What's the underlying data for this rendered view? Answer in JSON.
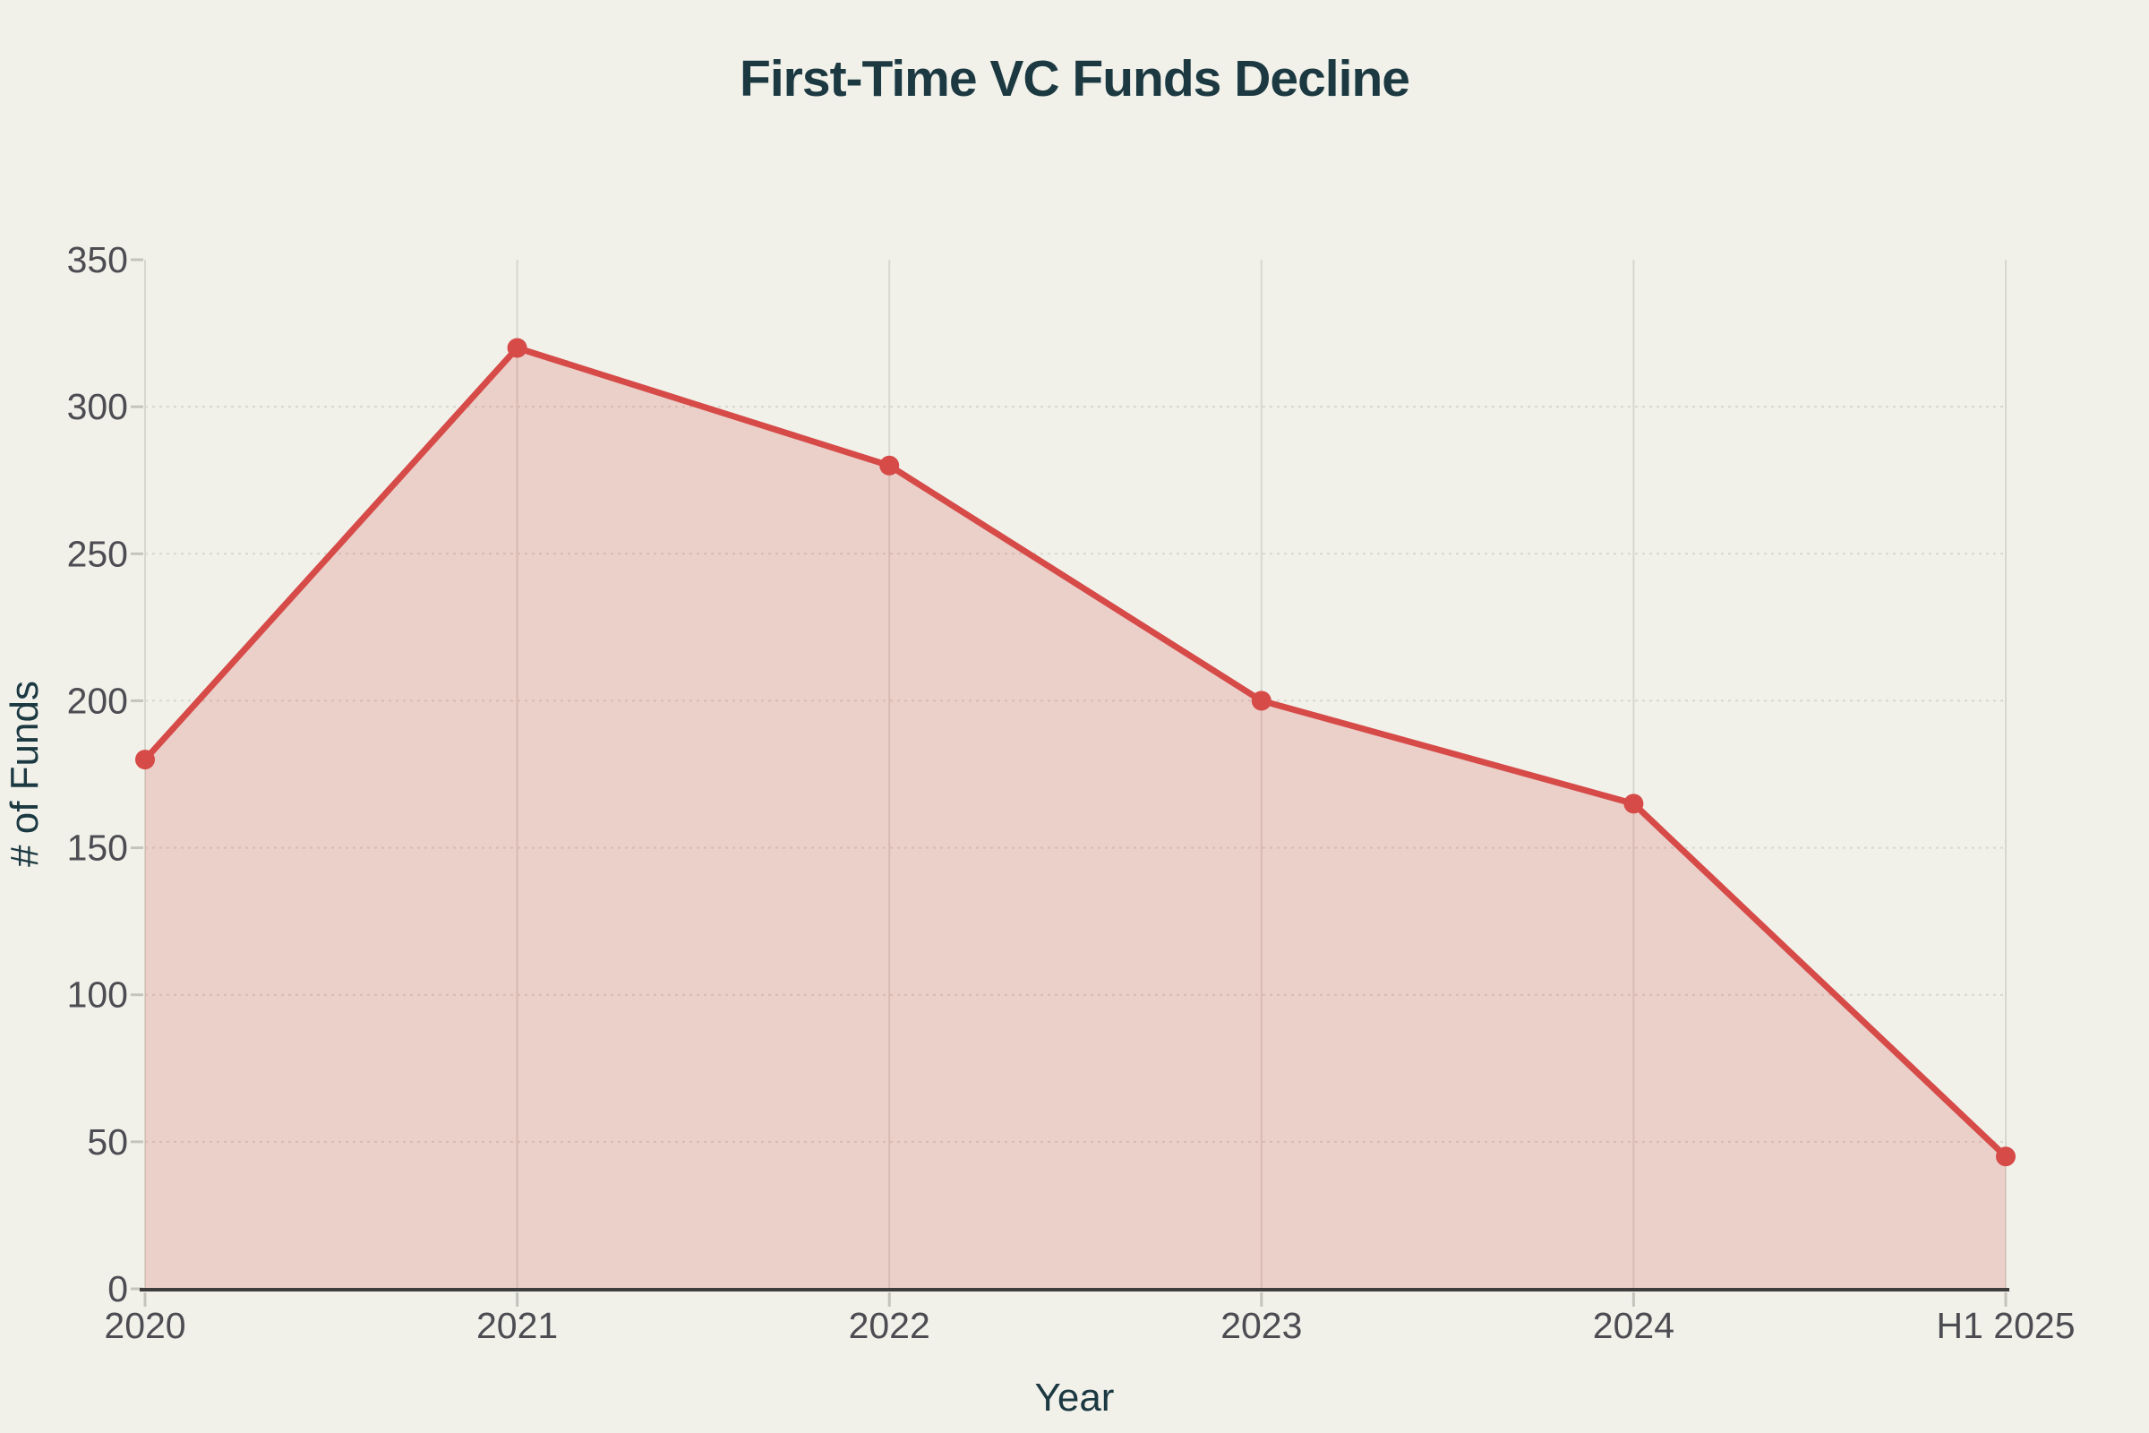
{
  "page": {
    "background_color": "#f1f1ea"
  },
  "chart_data": {
    "type": "area",
    "title": "First-Time VC Funds Decline",
    "xlabel": "Year",
    "ylabel": "# of Funds",
    "categories": [
      "2020",
      "2021",
      "2022",
      "2023",
      "2024",
      "H1 2025"
    ],
    "values": [
      180,
      320,
      280,
      200,
      165,
      45
    ],
    "ylim": [
      0,
      350
    ],
    "yticks": [
      0,
      50,
      100,
      150,
      200,
      250,
      300,
      350
    ],
    "grid": true,
    "legend": "none",
    "colors": {
      "line": "#d64a48",
      "marker": "#d64a48",
      "fill": "rgba(214, 74, 72, 0.2)",
      "background": "#f1f1ea",
      "title_text": "#1c3942",
      "axis_title_text": "#1c3942",
      "tick_text": "#4c4c52",
      "gridline": "#d7d7ce",
      "tick_mark": "#c4c4bc",
      "axis_line": "#3e3e3e"
    }
  }
}
